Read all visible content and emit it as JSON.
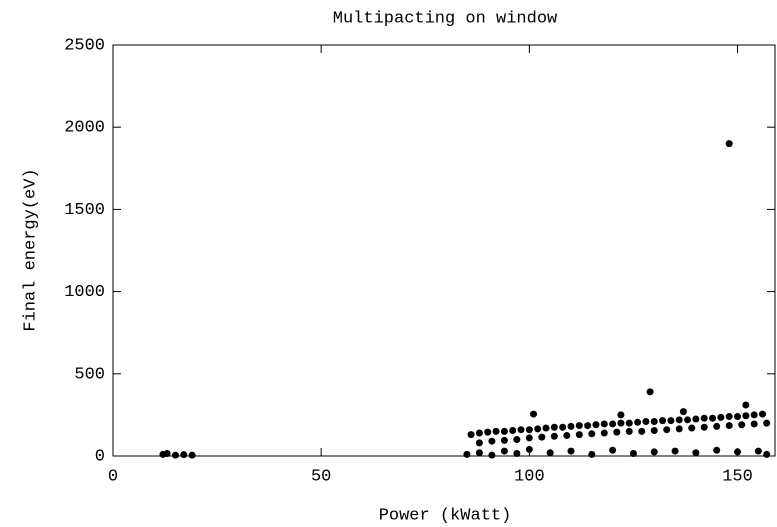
{
  "chart_data": {
    "type": "scatter",
    "title": "Multipacting on window",
    "x_label": "Power (kWatt)",
    "y_label": "Final energy(eV)",
    "color": "#000000",
    "x": [
      86,
      88,
      90,
      92,
      94,
      96,
      98,
      100,
      102,
      104,
      106,
      108,
      110,
      112,
      114,
      116,
      118,
      120,
      122,
      124,
      126,
      128,
      130,
      132,
      134,
      136,
      138,
      140,
      142,
      144,
      146,
      148,
      150,
      152,
      154,
      156,
      88,
      91,
      94,
      97,
      100,
      103,
      106,
      109,
      112,
      115,
      118,
      121,
      124,
      127,
      130,
      133,
      136,
      139,
      142,
      145,
      148,
      151,
      154,
      157,
      85,
      88,
      91,
      94,
      97,
      100,
      105,
      110,
      115,
      120,
      125,
      130,
      135,
      140,
      145,
      150,
      155,
      157,
      148,
      129,
      101,
      152,
      122,
      137,
      12,
      13,
      15,
      17,
      19
    ],
    "values": [
      130,
      140,
      145,
      150,
      150,
      155,
      160,
      160,
      165,
      170,
      175,
      175,
      180,
      185,
      185,
      190,
      195,
      195,
      200,
      200,
      205,
      210,
      210,
      215,
      215,
      220,
      220,
      225,
      230,
      230,
      235,
      240,
      240,
      245,
      250,
      255,
      80,
      90,
      95,
      100,
      110,
      115,
      120,
      125,
      130,
      135,
      140,
      145,
      150,
      150,
      155,
      160,
      165,
      170,
      175,
      180,
      185,
      190,
      195,
      200,
      10,
      20,
      5,
      30,
      15,
      40,
      20,
      30,
      10,
      35,
      15,
      25,
      30,
      20,
      35,
      25,
      30,
      10,
      1900,
      390,
      255,
      310,
      250,
      270,
      10,
      15,
      5,
      8,
      5
    ],
    "xlim": [
      0,
      159
    ],
    "ylim": [
      0,
      2500
    ],
    "xticks": [
      0,
      50,
      100,
      150
    ],
    "yticks": [
      0,
      500,
      1000,
      1500,
      2000,
      2500
    ]
  }
}
